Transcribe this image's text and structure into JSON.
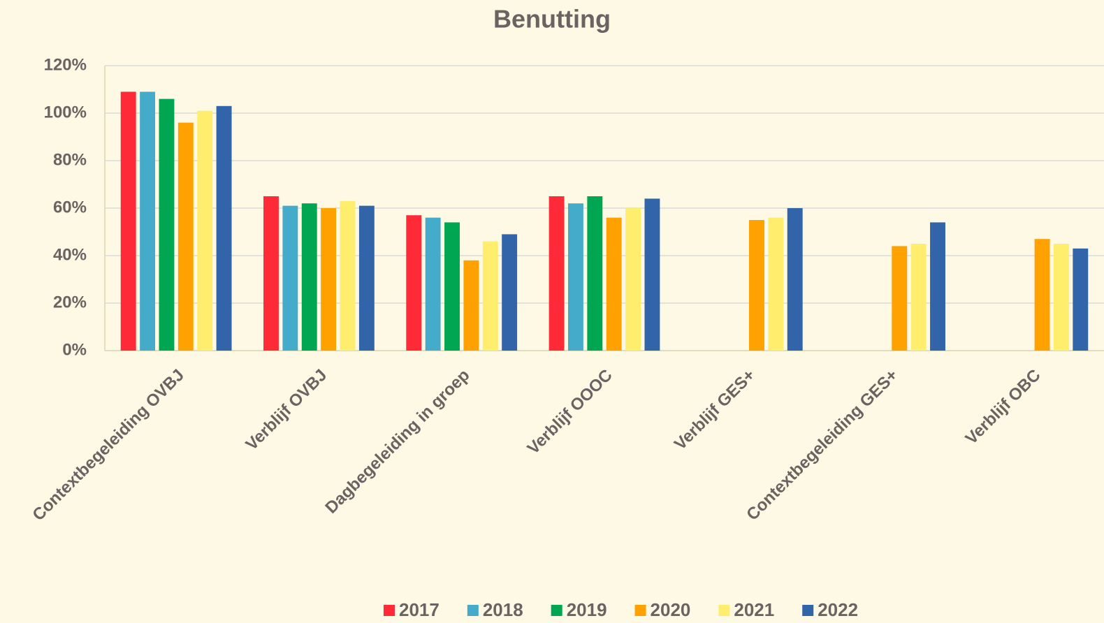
{
  "chart_data": {
    "type": "bar",
    "title": "Benutting",
    "categories": [
      "Contextbegeleiding OVBJ",
      "Verblijf OVBJ",
      "Dagbegeleiding in groep",
      "Verblijf OOOC",
      "Verblijf GES+",
      "Contextbegeleiding GES+",
      "Verblijf OBC"
    ],
    "series": [
      {
        "name": "2017",
        "color": "#ff2a37",
        "values": [
          109,
          65,
          57,
          65,
          null,
          null,
          null
        ]
      },
      {
        "name": "2018",
        "color": "#45abcb",
        "values": [
          109,
          61,
          56,
          62,
          null,
          null,
          null
        ]
      },
      {
        "name": "2019",
        "color": "#00a651",
        "values": [
          106,
          62,
          54,
          65,
          null,
          null,
          null
        ]
      },
      {
        "name": "2020",
        "color": "#ffa100",
        "values": [
          96,
          60,
          38,
          56,
          55,
          44,
          47
        ]
      },
      {
        "name": "2021",
        "color": "#ffee6e",
        "values": [
          101,
          63,
          46,
          60,
          56,
          45,
          45
        ]
      },
      {
        "name": "2022",
        "color": "#3164a8",
        "values": [
          103,
          61,
          49,
          64,
          60,
          54,
          43
        ]
      }
    ],
    "ylim": [
      0,
      120
    ],
    "yticks": [
      {
        "value": 0,
        "label": "0%"
      },
      {
        "value": 20,
        "label": "20%"
      },
      {
        "value": 40,
        "label": "40%"
      },
      {
        "value": 60,
        "label": "60%"
      },
      {
        "value": 80,
        "label": "80%"
      },
      {
        "value": 100,
        "label": "100%"
      },
      {
        "value": 120,
        "label": "120%"
      }
    ],
    "grid": true,
    "legend": "bottom"
  }
}
